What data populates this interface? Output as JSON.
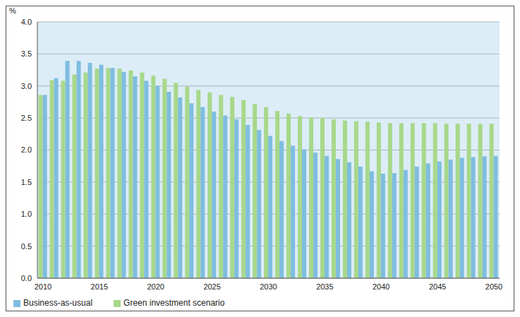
{
  "chart_data": {
    "type": "bar",
    "y_label": "%",
    "categories": [
      "2010",
      null,
      null,
      null,
      null,
      "2015",
      null,
      null,
      null,
      null,
      "2020",
      null,
      null,
      null,
      null,
      "2025",
      null,
      null,
      null,
      null,
      "2030",
      null,
      null,
      null,
      null,
      "2035",
      null,
      null,
      null,
      null,
      "2040",
      null,
      null,
      null,
      null,
      "2045",
      null,
      null,
      null,
      null,
      "2050"
    ],
    "series": [
      {
        "name": "Green investment scenario",
        "color": "#a8d88a",
        "values": [
          2.86,
          3.09,
          3.08,
          3.18,
          3.21,
          3.27,
          3.28,
          3.27,
          3.24,
          3.21,
          3.16,
          3.11,
          3.05,
          2.99,
          2.94,
          2.9,
          2.86,
          2.83,
          2.78,
          2.72,
          2.67,
          2.61,
          2.57,
          2.53,
          2.51,
          2.5,
          2.48,
          2.46,
          2.45,
          2.44,
          2.43,
          2.42,
          2.42,
          2.42,
          2.42,
          2.42,
          2.41,
          2.41,
          2.41,
          2.41,
          2.41
        ]
      },
      {
        "name": "Business-as-usual",
        "color": "#7fbde0",
        "values": [
          2.86,
          3.12,
          3.39,
          3.39,
          3.36,
          3.33,
          3.28,
          3.22,
          3.15,
          3.08,
          3.0,
          2.91,
          2.82,
          2.73,
          2.67,
          2.6,
          2.54,
          2.48,
          2.39,
          2.31,
          2.22,
          2.14,
          2.07,
          2.01,
          1.96,
          1.91,
          1.86,
          1.81,
          1.74,
          1.67,
          1.63,
          1.64,
          1.69,
          1.74,
          1.79,
          1.82,
          1.85,
          1.88,
          1.89,
          1.9,
          1.91
        ]
      }
    ],
    "ylim": [
      0,
      4
    ],
    "yticks": [
      {
        "value": 0,
        "label": "0.0"
      },
      0.5,
      {
        "value": 1,
        "label": "1.0"
      },
      1.5,
      {
        "value": 2,
        "label": "2.0"
      },
      2.5,
      {
        "value": 3,
        "label": "3.0"
      },
      3.5,
      {
        "value": 4,
        "label": "4.0"
      }
    ],
    "grid": true,
    "legend": "bottom-left"
  }
}
